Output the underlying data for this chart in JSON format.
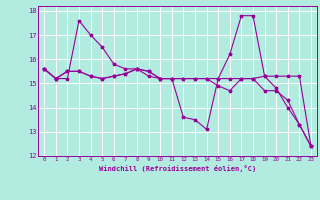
{
  "xlabel": "Windchill (Refroidissement éolien,°C)",
  "bg_color": "#b2ebe0",
  "line_color": "#990099",
  "grid_color": "#ffffff",
  "xlim": [
    -0.5,
    23.5
  ],
  "ylim": [
    12,
    18.2
  ],
  "yticks": [
    12,
    13,
    14,
    15,
    16,
    17,
    18
  ],
  "xticks": [
    0,
    1,
    2,
    3,
    4,
    5,
    6,
    7,
    8,
    9,
    10,
    11,
    12,
    13,
    14,
    15,
    16,
    17,
    18,
    19,
    20,
    21,
    22,
    23
  ],
  "series1_x": [
    0,
    1,
    2,
    3,
    4,
    5,
    6,
    7,
    8,
    9,
    10,
    11,
    12,
    13,
    14,
    15,
    16,
    17,
    18,
    19,
    20,
    21,
    22,
    23
  ],
  "series1_y": [
    15.6,
    15.2,
    15.2,
    17.6,
    17.0,
    16.5,
    15.8,
    15.6,
    15.6,
    15.3,
    15.2,
    15.2,
    13.6,
    13.5,
    13.1,
    15.2,
    16.2,
    17.8,
    17.8,
    15.3,
    14.8,
    14.0,
    13.3,
    12.4
  ],
  "series2_x": [
    0,
    1,
    2,
    3,
    4,
    5,
    6,
    7,
    8,
    9,
    10,
    11,
    12,
    13,
    14,
    15,
    16,
    17,
    18,
    19,
    20,
    21,
    22,
    23
  ],
  "series2_y": [
    15.6,
    15.2,
    15.5,
    15.5,
    15.3,
    15.2,
    15.3,
    15.4,
    15.6,
    15.5,
    15.2,
    15.2,
    15.2,
    15.2,
    15.2,
    15.2,
    15.2,
    15.2,
    15.2,
    15.3,
    15.3,
    15.3,
    15.3,
    12.4
  ],
  "series3_x": [
    0,
    1,
    2,
    3,
    4,
    5,
    6,
    7,
    8,
    9,
    10,
    11,
    12,
    13,
    14,
    15,
    16,
    17,
    18,
    19,
    20,
    21,
    22,
    23
  ],
  "series3_y": [
    15.6,
    15.2,
    15.5,
    15.5,
    15.3,
    15.2,
    15.3,
    15.4,
    15.6,
    15.5,
    15.2,
    15.2,
    15.2,
    15.2,
    15.2,
    14.9,
    14.7,
    15.2,
    15.2,
    14.7,
    14.7,
    14.3,
    13.3,
    12.4
  ]
}
